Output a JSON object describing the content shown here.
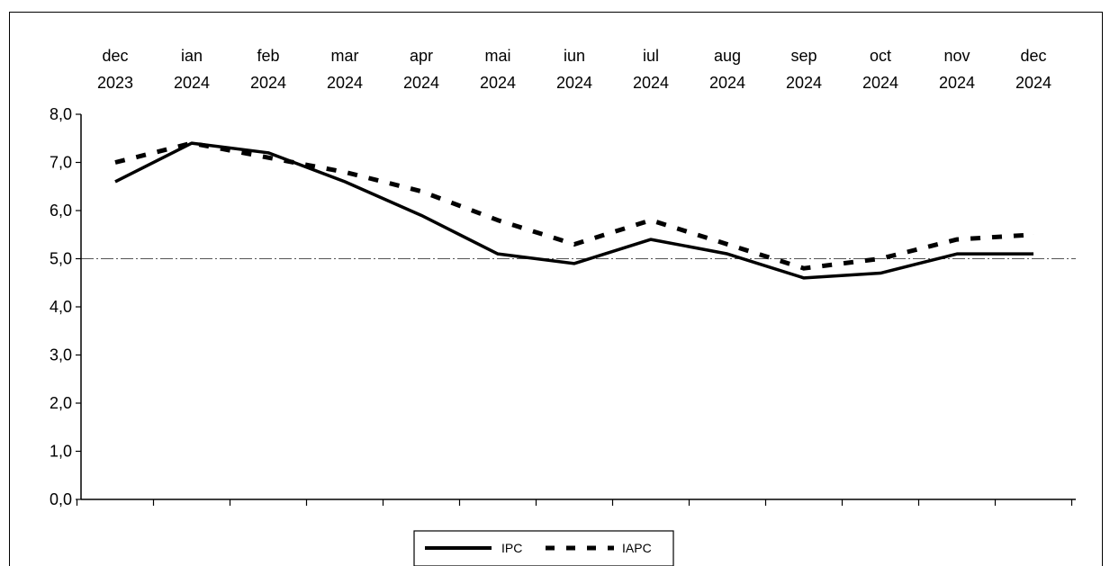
{
  "chart_data": {
    "type": "line",
    "categories": [
      "dec 2023",
      "ian 2024",
      "feb 2024",
      "mar 2024",
      "apr 2024",
      "mai 2024",
      "iun 2024",
      "iul 2024",
      "aug 2024",
      "sep 2024",
      "oct 2024",
      "nov 2024",
      "dec 2024"
    ],
    "category_labels": [
      [
        "dec",
        "2023"
      ],
      [
        "ian",
        "2024"
      ],
      [
        "feb",
        "2024"
      ],
      [
        "mar",
        "2024"
      ],
      [
        "apr",
        "2024"
      ],
      [
        "mai",
        "2024"
      ],
      [
        "iun",
        "2024"
      ],
      [
        "iul",
        "2024"
      ],
      [
        "aug",
        "2024"
      ],
      [
        "sep",
        "2024"
      ],
      [
        "oct",
        "2024"
      ],
      [
        "nov",
        "2024"
      ],
      [
        "dec",
        "2024"
      ]
    ],
    "series": [
      {
        "name": "IPC",
        "style": "solid",
        "values": [
          6.6,
          7.4,
          7.2,
          6.6,
          5.9,
          5.1,
          4.9,
          5.4,
          5.1,
          4.6,
          4.7,
          5.1,
          5.1
        ]
      },
      {
        "name": "IAPC",
        "style": "dashed",
        "values": [
          7.0,
          7.4,
          7.1,
          6.8,
          6.4,
          5.8,
          5.3,
          5.8,
          5.3,
          4.8,
          5.0,
          5.4,
          5.5
        ]
      }
    ],
    "ylim": [
      0,
      8
    ],
    "yticks": [
      "0,0",
      "1,0",
      "2,0",
      "3,0",
      "4,0",
      "5,0",
      "6,0",
      "7,0",
      "8,0"
    ],
    "title": "",
    "xlabel": "",
    "ylabel": "",
    "legend_position": "bottom-center",
    "grid": "only at 5,0",
    "colors": {
      "line": "#000000",
      "background": "#ffffff"
    }
  }
}
